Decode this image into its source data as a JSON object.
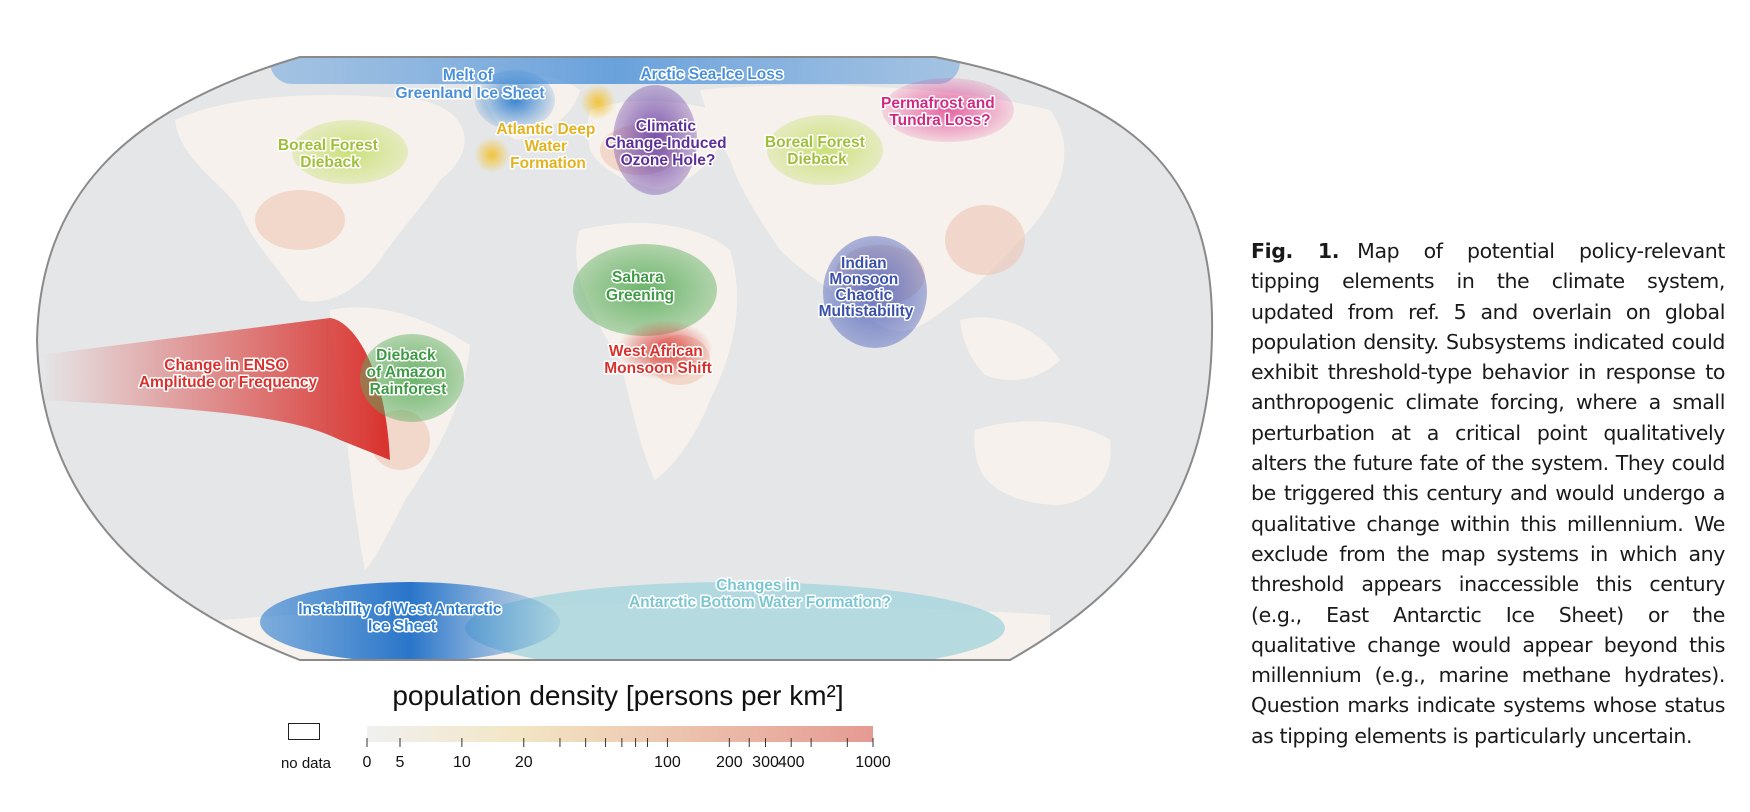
{
  "map": {
    "colors": {
      "ocean": "#e5e6e8",
      "land": "#f6f1ec",
      "ice_blue": "#4a90d9",
      "antarctic_teal": "#a9d6dd",
      "enso_red": "#d8322e",
      "green": "#5cae5c",
      "yellow_green": "#c7df6f",
      "yellow": "#f2c230",
      "purple": "#6a3fa6",
      "magenta": "#e0358c",
      "indigo": "#5063bb"
    },
    "labels": {
      "greenland": [
        "Melt of",
        "Greenland Ice Sheet"
      ],
      "arctic": [
        "Arctic Sea-Ice Loss"
      ],
      "boreal_west": [
        "Boreal Forest",
        "Dieback"
      ],
      "atlantic": [
        "Atlantic Deep",
        "Water",
        "Formation"
      ],
      "ozone": [
        "Climatic",
        "Change-Induced",
        "Ozone Hole?"
      ],
      "boreal_east": [
        "Boreal Forest",
        "Dieback"
      ],
      "permafrost": [
        "Permafrost and",
        "Tundra Loss?"
      ],
      "sahara": [
        "Sahara",
        "Greening"
      ],
      "monsoon_indian": [
        "Indian",
        "Monsoon",
        "Chaotic",
        "Multistability"
      ],
      "enso": [
        "Change in ENSO",
        "Amplitude or Frequency"
      ],
      "amazon": [
        "Dieback",
        "of Amazon",
        "Rainforest"
      ],
      "west_african": [
        "West African",
        "Monsoon Shift"
      ],
      "west_antarctic": [
        "Instability of West Antarctic",
        "Ice Sheet"
      ],
      "antarctic_bottom": [
        "Changes in",
        "Antarctic Bottom Water Formation?"
      ]
    }
  },
  "legend": {
    "title": "population density [persons per km²]",
    "no_data_label": "no data",
    "color_low": "#f0f0f0",
    "color_mid": "#f3e6c4",
    "color_high": "#e59a92",
    "ticks": [
      {
        "label": "0",
        "value": 0
      },
      {
        "label": "5",
        "value": 5
      },
      {
        "label": "10",
        "value": 10
      },
      {
        "label": "20",
        "value": 20
      },
      {
        "label": "",
        "value": 30
      },
      {
        "label": "",
        "value": 40
      },
      {
        "label": "",
        "value": 50
      },
      {
        "label": "",
        "value": 60
      },
      {
        "label": "",
        "value": 70
      },
      {
        "label": "",
        "value": 80
      },
      {
        "label": "100",
        "value": 100
      },
      {
        "label": "200",
        "value": 200
      },
      {
        "label": "",
        "value": 250
      },
      {
        "label": "300",
        "value": 300
      },
      {
        "label": "400",
        "value": 400
      },
      {
        "label": "",
        "value": 500
      },
      {
        "label": "",
        "value": 750
      },
      {
        "label": "1000",
        "value": 1000
      }
    ]
  },
  "caption": {
    "fig_label": "Fig. 1.",
    "text": "Map of potential policy-relevant tipping elements in the climate system, updated from ref. 5 and overlain on global population density. Subsystems indicated could exhibit threshold-type behavior in response to anthropogenic climate forcing, where a small perturbation at a critical point qualitatively alters the future fate of the system. They could be triggered this century and would undergo a qualitative change within this millennium. We exclude from the map systems in which any threshold appears inaccessible this century (e.g., East Antarctic Ice Sheet) or the qualitative change would appear beyond this millennium (e.g., marine methane hydrates). Question marks indicate systems whose status as tipping elements is particularly uncertain."
  }
}
